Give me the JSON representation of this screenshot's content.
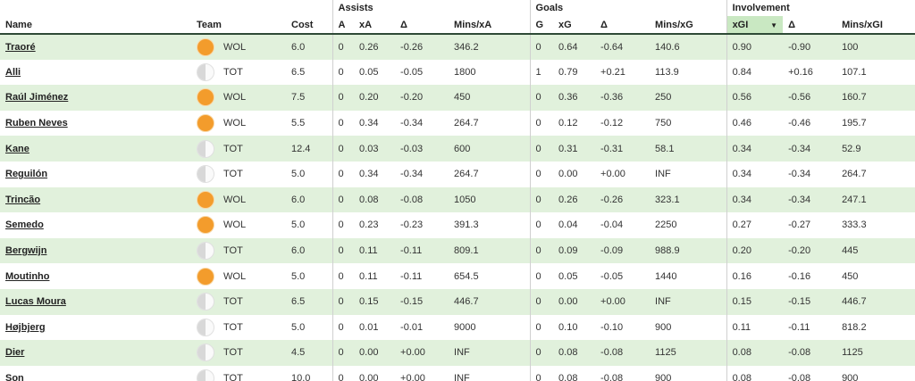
{
  "groups": {
    "assists": "Assists",
    "goals": "Goals",
    "involvement": "Involvement"
  },
  "columns": {
    "name": "Name",
    "team": "Team",
    "cost": "Cost",
    "a": "A",
    "xa": "xA",
    "delta_a": "Δ",
    "mins_xa": "Mins/xA",
    "g": "G",
    "xg": "xG",
    "delta_g": "Δ",
    "mins_xg": "Mins/xG",
    "xgi": "xGI",
    "delta_i": "Δ",
    "mins_xgi": "Mins/xGI"
  },
  "sort": {
    "column": "xGI",
    "direction": "descending",
    "icon": "sort-down-icon"
  },
  "colors": {
    "row_alt": "#e1f1dc",
    "sorted_header": "#c9e8c2",
    "wol": "#f39c2c",
    "header_rule": "#2e4a36"
  },
  "rows": [
    {
      "name": "Traoré",
      "team": "WOL",
      "badge": "wol",
      "cost": "6.0",
      "a": "0",
      "xa": "0.26",
      "da": "-0.26",
      "mxa": "346.2",
      "g": "0",
      "xg": "0.64",
      "dg": "-0.64",
      "mxg": "140.6",
      "xgi": "0.90",
      "di": "-0.90",
      "mxgi": "100"
    },
    {
      "name": "Alli",
      "team": "TOT",
      "badge": "tot",
      "cost": "6.5",
      "a": "0",
      "xa": "0.05",
      "da": "-0.05",
      "mxa": "1800",
      "g": "1",
      "xg": "0.79",
      "dg": "+0.21",
      "mxg": "113.9",
      "xgi": "0.84",
      "di": "+0.16",
      "mxgi": "107.1"
    },
    {
      "name": "Raúl Jiménez",
      "team": "WOL",
      "badge": "wol",
      "cost": "7.5",
      "a": "0",
      "xa": "0.20",
      "da": "-0.20",
      "mxa": "450",
      "g": "0",
      "xg": "0.36",
      "dg": "-0.36",
      "mxg": "250",
      "xgi": "0.56",
      "di": "-0.56",
      "mxgi": "160.7"
    },
    {
      "name": "Ruben Neves",
      "team": "WOL",
      "badge": "wol",
      "cost": "5.5",
      "a": "0",
      "xa": "0.34",
      "da": "-0.34",
      "mxa": "264.7",
      "g": "0",
      "xg": "0.12",
      "dg": "-0.12",
      "mxg": "750",
      "xgi": "0.46",
      "di": "-0.46",
      "mxgi": "195.7"
    },
    {
      "name": "Kane",
      "team": "TOT",
      "badge": "tot",
      "cost": "12.4",
      "a": "0",
      "xa": "0.03",
      "da": "-0.03",
      "mxa": "600",
      "g": "0",
      "xg": "0.31",
      "dg": "-0.31",
      "mxg": "58.1",
      "xgi": "0.34",
      "di": "-0.34",
      "mxgi": "52.9"
    },
    {
      "name": "Reguilón",
      "team": "TOT",
      "badge": "tot",
      "cost": "5.0",
      "a": "0",
      "xa": "0.34",
      "da": "-0.34",
      "mxa": "264.7",
      "g": "0",
      "xg": "0.00",
      "dg": "+0.00",
      "mxg": "INF",
      "xgi": "0.34",
      "di": "-0.34",
      "mxgi": "264.7"
    },
    {
      "name": "Trincão",
      "team": "WOL",
      "badge": "wol",
      "cost": "6.0",
      "a": "0",
      "xa": "0.08",
      "da": "-0.08",
      "mxa": "1050",
      "g": "0",
      "xg": "0.26",
      "dg": "-0.26",
      "mxg": "323.1",
      "xgi": "0.34",
      "di": "-0.34",
      "mxgi": "247.1"
    },
    {
      "name": "Semedo",
      "team": "WOL",
      "badge": "wol",
      "cost": "5.0",
      "a": "0",
      "xa": "0.23",
      "da": "-0.23",
      "mxa": "391.3",
      "g": "0",
      "xg": "0.04",
      "dg": "-0.04",
      "mxg": "2250",
      "xgi": "0.27",
      "di": "-0.27",
      "mxgi": "333.3"
    },
    {
      "name": "Bergwijn",
      "team": "TOT",
      "badge": "tot",
      "cost": "6.0",
      "a": "0",
      "xa": "0.11",
      "da": "-0.11",
      "mxa": "809.1",
      "g": "0",
      "xg": "0.09",
      "dg": "-0.09",
      "mxg": "988.9",
      "xgi": "0.20",
      "di": "-0.20",
      "mxgi": "445"
    },
    {
      "name": "Moutinho",
      "team": "WOL",
      "badge": "wol",
      "cost": "5.0",
      "a": "0",
      "xa": "0.11",
      "da": "-0.11",
      "mxa": "654.5",
      "g": "0",
      "xg": "0.05",
      "dg": "-0.05",
      "mxg": "1440",
      "xgi": "0.16",
      "di": "-0.16",
      "mxgi": "450"
    },
    {
      "name": "Lucas Moura",
      "team": "TOT",
      "badge": "tot",
      "cost": "6.5",
      "a": "0",
      "xa": "0.15",
      "da": "-0.15",
      "mxa": "446.7",
      "g": "0",
      "xg": "0.00",
      "dg": "+0.00",
      "mxg": "INF",
      "xgi": "0.15",
      "di": "-0.15",
      "mxgi": "446.7"
    },
    {
      "name": "Højbjerg",
      "team": "TOT",
      "badge": "tot",
      "cost": "5.0",
      "a": "0",
      "xa": "0.01",
      "da": "-0.01",
      "mxa": "9000",
      "g": "0",
      "xg": "0.10",
      "dg": "-0.10",
      "mxg": "900",
      "xgi": "0.11",
      "di": "-0.11",
      "mxgi": "818.2"
    },
    {
      "name": "Dier",
      "team": "TOT",
      "badge": "tot",
      "cost": "4.5",
      "a": "0",
      "xa": "0.00",
      "da": "+0.00",
      "mxa": "INF",
      "g": "0",
      "xg": "0.08",
      "dg": "-0.08",
      "mxg": "1125",
      "xgi": "0.08",
      "di": "-0.08",
      "mxgi": "1125"
    },
    {
      "name": "Son",
      "team": "TOT",
      "badge": "tot",
      "cost": "10.0",
      "a": "0",
      "xa": "0.00",
      "da": "+0.00",
      "mxa": "INF",
      "g": "0",
      "xg": "0.08",
      "dg": "-0.08",
      "mxg": "900",
      "xgi": "0.08",
      "di": "-0.08",
      "mxgi": "900"
    }
  ]
}
